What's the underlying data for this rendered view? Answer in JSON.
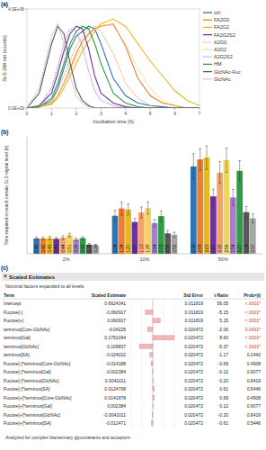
{
  "panel_labels": [
    "(a)",
    "(b)",
    "(c)"
  ],
  "chart_data": [
    {
      "type": "line",
      "x_label": "Incubation time (h)",
      "y_label": "SLS 266 nm (counts)",
      "x": [
        0,
        0.5,
        1,
        1.25,
        1.5,
        1.75,
        2,
        2.25,
        2.5,
        2.75,
        3,
        3.5,
        4,
        4.5,
        5,
        5.5,
        6,
        6.5,
        7
      ],
      "xlim": [
        0,
        7
      ],
      "xticks": [
        0,
        1,
        2,
        3,
        4,
        5,
        6,
        7
      ],
      "ylim": [
        0,
        4000000
      ],
      "yticks": [
        {
          "value": 0,
          "label": "0.0E+00"
        },
        {
          "value": 4000000,
          "label": "4.0E+06"
        }
      ],
      "legend": "right",
      "series": [
        {
          "name": "ctrl",
          "color": "#2e75b6",
          "line_style": "solid",
          "values": [
            0,
            50000,
            300000,
            800000,
            1600000,
            2400000,
            2900000,
            3100000,
            3300000,
            3200000,
            2600000,
            1200000,
            500000,
            200000,
            100000,
            50000,
            0,
            0,
            0
          ]
        },
        {
          "name": "FA2G0",
          "color": "#ed7d31",
          "line_style": "solid",
          "values": [
            0,
            50000,
            200000,
            500000,
            1000000,
            1600000,
            2200000,
            2700000,
            3000000,
            3200000,
            3300000,
            3400000,
            2500000,
            1200000,
            500000,
            200000,
            100000,
            0,
            0
          ]
        },
        {
          "name": "FA2G2",
          "color": "#e6b91e",
          "line_style": "solid",
          "values": [
            0,
            50000,
            150000,
            400000,
            800000,
            1300000,
            1800000,
            2300000,
            2700000,
            3100000,
            3400000,
            3600000,
            3300000,
            2600000,
            1900000,
            1300000,
            700000,
            300000,
            100000
          ]
        },
        {
          "name": "FA2G2S2",
          "color": "#7030a0",
          "line_style": "solid",
          "values": [
            0,
            100000,
            600000,
            1400000,
            2300000,
            3000000,
            3300000,
            3200000,
            2400000,
            1300000,
            600000,
            200000,
            50000,
            0,
            0,
            0,
            0,
            0,
            0
          ]
        },
        {
          "name": "A2G0",
          "color": "#f4a36b",
          "line_style": "dotted",
          "values": [
            0,
            50000,
            300000,
            700000,
            1300000,
            1900000,
            2500000,
            2900000,
            3200000,
            3300000,
            3100000,
            2200000,
            1000000,
            400000,
            100000,
            0,
            0,
            0,
            0
          ]
        },
        {
          "name": "A2G2",
          "color": "#f2d35e",
          "line_style": "dotted",
          "values": [
            0,
            50000,
            200000,
            500000,
            1000000,
            1500000,
            2000000,
            2500000,
            2900000,
            3200000,
            3400000,
            3300000,
            2600000,
            1600000,
            800000,
            300000,
            100000,
            0,
            0
          ]
        },
        {
          "name": "A2G2S2",
          "color": "#a57fc9",
          "line_style": "dotted",
          "values": [
            0,
            100000,
            800000,
            1700000,
            2600000,
            3200000,
            3100000,
            2500000,
            1500000,
            700000,
            300000,
            100000,
            0,
            0,
            0,
            0,
            0,
            0,
            0
          ]
        },
        {
          "name": "HM",
          "color": "#2e9e45",
          "line_style": "solid",
          "values": [
            0,
            50000,
            400000,
            1000000,
            1800000,
            2600000,
            3100000,
            3300000,
            3200000,
            2600000,
            1800000,
            600000,
            200000,
            50000,
            0,
            0,
            0,
            0,
            0
          ]
        },
        {
          "name": "GlcNAc-Fuc",
          "color": "#595959",
          "line_style": "solid",
          "values": [
            0,
            600000,
            2600000,
            3300000,
            3000000,
            1800000,
            800000,
            300000,
            100000,
            0,
            0,
            0,
            0,
            0,
            0,
            0,
            0,
            0,
            0
          ]
        },
        {
          "name": "GlcNAc",
          "color": "#a6a6a6",
          "line_style": "dotted",
          "values": [
            0,
            800000,
            2900000,
            3400000,
            2600000,
            1300000,
            500000,
            200000,
            50000,
            0,
            0,
            0,
            0,
            0,
            0,
            0,
            0,
            0,
            0
          ]
        }
      ]
    },
    {
      "type": "bar",
      "y_label": "Time required to reach certain SLS signal level (h)",
      "categories": [
        "2%",
        "10%",
        "50%"
      ],
      "ylim": [
        0,
        3.2
      ],
      "data_labels": true,
      "tick_labels": "x",
      "series": [
        {
          "color": "#2e75b6",
          "values": [
            0.42,
            1.04,
            2.39
          ],
          "errors": [
            0.04,
            0.15,
            0.35
          ]
        },
        {
          "color": "#ed7d31",
          "values": [
            0.42,
            1.24,
            2.58
          ],
          "errors": [
            0.04,
            0.18,
            0.3
          ]
        },
        {
          "color": "#e6b91e",
          "values": [
            0.43,
            1.21,
            2.63
          ],
          "errors": [
            0.05,
            0.15,
            0.32
          ]
        },
        {
          "color": "#7030a0",
          "values": [
            0.41,
            0.87,
            1.57
          ],
          "errors": [
            0.04,
            0.1,
            0.2
          ]
        },
        {
          "color": "#f4a36b",
          "values": [
            0.44,
            1.13,
            2.22
          ],
          "errors": [
            0.05,
            0.15,
            0.3
          ]
        },
        {
          "color": "#f2d35e",
          "values": [
            0.51,
            1.25,
            2.56
          ],
          "errors": [
            0.05,
            0.17,
            0.33
          ]
        },
        {
          "color": "#a57fc9",
          "values": [
            0.39,
            0.84,
            1.54
          ],
          "errors": [
            0.04,
            0.1,
            0.22
          ]
        },
        {
          "color": "#2e9e45",
          "values": [
            0.43,
            1.03,
            2.27
          ],
          "errors": [
            0.04,
            0.14,
            0.28
          ]
        },
        {
          "color": "#595959",
          "values": [
            0.25,
            0.56,
            1.14
          ],
          "errors": [
            0.03,
            0.08,
            0.15
          ]
        },
        {
          "color": "#a6a6a6",
          "values": [
            0.23,
            0.52,
            0.97
          ],
          "errors": [
            0.03,
            0.07,
            0.12
          ]
        }
      ]
    }
  ],
  "table": {
    "title": "Scaled Estimates",
    "subtitle": "Nominal factors expanded to all levels",
    "header": [
      "Term",
      "Scaled Estimate",
      "Std Error",
      "t Ratio",
      "Prob>|t|"
    ],
    "rows": [
      [
        "Intercept",
        "0.6624341",
        "0.011819",
        "56.05",
        "<.0001*"
      ],
      [
        "Fucose[-]",
        "-0.060917",
        "0.011819",
        "-5.15",
        "<.0001*"
      ],
      [
        "Fucose[+]",
        "0.060917",
        "0.011819",
        "5.15",
        "<.0001*"
      ],
      [
        "terminus[Core-GlcNAc]",
        "-0.04225",
        "0.020472",
        "-2.06",
        "0.0431*"
      ],
      [
        "terminus[Gal]",
        "0.1761094",
        "0.020472",
        "8.60",
        "<.0001*"
      ],
      [
        "terminus[GlcNAc]",
        "-0.109837",
        "0.020472",
        "-5.37",
        "<.0001*"
      ],
      [
        "terminus[SA]",
        "-0.024022",
        "0.020472",
        "-1.17",
        "0.2442"
      ],
      [
        "Fucose[-]*terminus[Core-GlcNAc]",
        "-0.014188",
        "0.020472",
        "-0.69",
        "0.4908"
      ],
      [
        "Fucose[-]*terminus[Gal]",
        "-0.002384",
        "0.020472",
        "-0.12",
        "0.9077"
      ],
      [
        "Fucose[-]*terminus[GlcNAc]",
        "0.0041011",
        "0.020472",
        "0.20",
        "0.8419"
      ],
      [
        "Fucose[-]*terminus[SA]",
        "0.0124708",
        "0.020472",
        "0.61",
        "0.5446"
      ],
      [
        "Fucose[+]*terminus[Core-GlcNAc]",
        "0.0141878",
        "0.020472",
        "0.69",
        "0.4908"
      ],
      [
        "Fucose[+]*terminus[Gal]",
        "0.002384",
        "0.020472",
        "0.12",
        "0.9077"
      ],
      [
        "Fucose[+]*terminus[GlcNAc]",
        "-0.0041011",
        "0.020472",
        "-0.20",
        "0.8419"
      ],
      [
        "Fucose[+]*terminus[SA]",
        "-0.012471",
        "0.020472",
        "-0.61",
        "0.5446"
      ]
    ],
    "footer": "Analyzed for complex biantennary glycovariants and acceptors"
  }
}
